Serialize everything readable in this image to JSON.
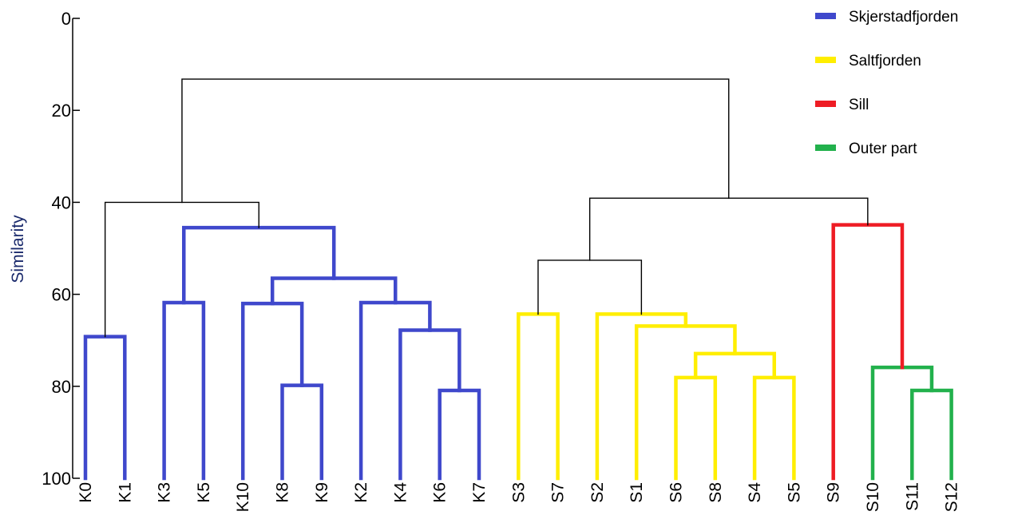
{
  "chart_data": {
    "type": "dendrogram",
    "title": "",
    "xlabel": "",
    "ylabel": "Similarity",
    "ylim": [
      0,
      100
    ],
    "yticks": [
      "0",
      "20",
      "40",
      "60",
      "80",
      "100"
    ],
    "legend_position": "top-right",
    "groups": [
      {
        "name": "Skjerstadfjorden",
        "color": "#3f48cc"
      },
      {
        "name": "Saltfjorden",
        "color": "#ffee00"
      },
      {
        "name": "Sill",
        "color": "#ee1c24"
      },
      {
        "name": "Outer part",
        "color": "#22b14c"
      }
    ],
    "leaves": [
      {
        "label": "K0",
        "group": "Skjerstadfjorden"
      },
      {
        "label": "K1",
        "group": "Skjerstadfjorden"
      },
      {
        "label": "K3",
        "group": "Skjerstadfjorden"
      },
      {
        "label": "K5",
        "group": "Skjerstadfjorden"
      },
      {
        "label": "K10",
        "group": "Skjerstadfjorden"
      },
      {
        "label": "K8",
        "group": "Skjerstadfjorden"
      },
      {
        "label": "K9",
        "group": "Skjerstadfjorden"
      },
      {
        "label": "K2",
        "group": "Skjerstadfjorden"
      },
      {
        "label": "K4",
        "group": "Skjerstadfjorden"
      },
      {
        "label": "K6",
        "group": "Skjerstadfjorden"
      },
      {
        "label": "K7",
        "group": "Skjerstadfjorden"
      },
      {
        "label": "S3",
        "group": "Saltfjorden"
      },
      {
        "label": "S7",
        "group": "Saltfjorden"
      },
      {
        "label": "S2",
        "group": "Saltfjorden"
      },
      {
        "label": "S1",
        "group": "Saltfjorden"
      },
      {
        "label": "S6",
        "group": "Saltfjorden"
      },
      {
        "label": "S8",
        "group": "Saltfjorden"
      },
      {
        "label": "S4",
        "group": "Saltfjorden"
      },
      {
        "label": "S5",
        "group": "Saltfjorden"
      },
      {
        "label": "S9",
        "group": "Sill"
      },
      {
        "label": "S10",
        "group": "Outer part"
      },
      {
        "label": "S11",
        "group": "Outer part"
      },
      {
        "label": "S12",
        "group": "Outer part"
      }
    ],
    "merges": [
      {
        "id": "m1",
        "a": "K0",
        "b": "K1",
        "similarity": 69.2,
        "color": "#3f48cc"
      },
      {
        "id": "m2",
        "a": "K3",
        "b": "K5",
        "similarity": 61.8,
        "color": "#3f48cc"
      },
      {
        "id": "m3",
        "a": "K8",
        "b": "K9",
        "similarity": 79.8,
        "color": "#3f48cc"
      },
      {
        "id": "m4",
        "a": "K10",
        "b": "m3",
        "similarity": 62.0,
        "color": "#3f48cc"
      },
      {
        "id": "m5",
        "a": "K6",
        "b": "K7",
        "similarity": 80.9,
        "color": "#3f48cc"
      },
      {
        "id": "m6",
        "a": "K4",
        "b": "m5",
        "similarity": 67.8,
        "color": "#3f48cc"
      },
      {
        "id": "m7",
        "a": "K2",
        "b": "m6",
        "similarity": 61.8,
        "color": "#3f48cc"
      },
      {
        "id": "m8",
        "a": "m4",
        "b": "m7",
        "similarity": 56.5,
        "color": "#3f48cc"
      },
      {
        "id": "m9",
        "a": "m2",
        "b": "m8",
        "similarity": 45.5,
        "color": "#3f48cc"
      },
      {
        "id": "m10",
        "a": "m1",
        "b": "m9",
        "similarity": 40.0,
        "color": "#000000"
      },
      {
        "id": "m11",
        "a": "S3",
        "b": "S7",
        "similarity": 64.3,
        "color": "#ffee00"
      },
      {
        "id": "m12",
        "a": "S6",
        "b": "S8",
        "similarity": 78.1,
        "color": "#ffee00"
      },
      {
        "id": "m13",
        "a": "S4",
        "b": "S5",
        "similarity": 78.1,
        "color": "#ffee00"
      },
      {
        "id": "m14",
        "a": "m12",
        "b": "m13",
        "similarity": 72.9,
        "color": "#ffee00"
      },
      {
        "id": "m15",
        "a": "S1",
        "b": "m14",
        "similarity": 66.9,
        "color": "#ffee00"
      },
      {
        "id": "m16",
        "a": "S2",
        "b": "m15",
        "similarity": 64.3,
        "color": "#ffee00"
      },
      {
        "id": "m17",
        "a": "m11",
        "b": "m16",
        "similarity": 52.6,
        "color": "#000000"
      },
      {
        "id": "m18",
        "a": "S11",
        "b": "S12",
        "similarity": 80.9,
        "color": "#22b14c"
      },
      {
        "id": "m19",
        "a": "S10",
        "b": "m18",
        "similarity": 75.9,
        "color": "#22b14c"
      },
      {
        "id": "m20",
        "a": "S9",
        "b": "m19",
        "similarity": 44.9,
        "color": "#ee1c24"
      },
      {
        "id": "m21",
        "a": "m17",
        "b": "m20",
        "similarity": 39.1,
        "color": "#000000"
      },
      {
        "id": "m22",
        "a": "m10",
        "b": "m21",
        "similarity": 13.2,
        "color": "#000000"
      }
    ]
  }
}
